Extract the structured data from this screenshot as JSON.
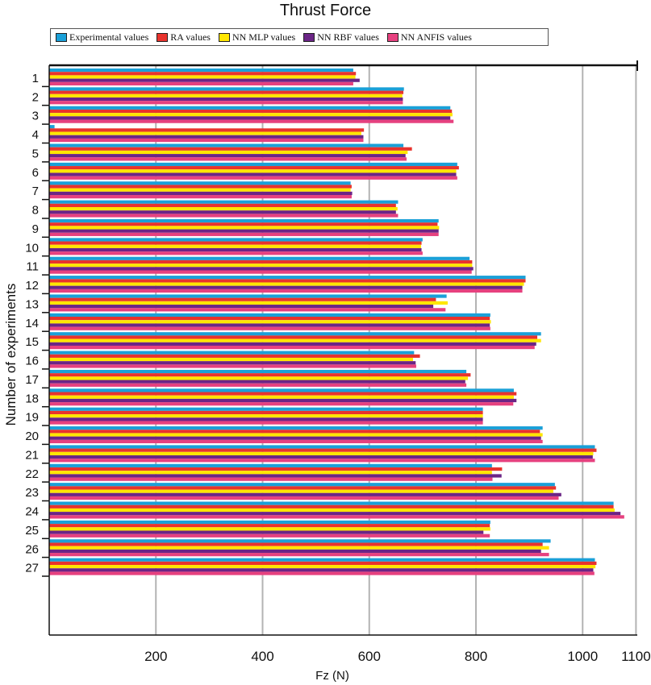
{
  "chart_data": {
    "type": "bar",
    "orientation": "horizontal",
    "title": "Thrust Force",
    "xlabel": "Fz (N)",
    "ylabel": "Number of experiments",
    "xlim": [
      0,
      1100
    ],
    "xticks": [
      200,
      400,
      600,
      800,
      1000,
      1100
    ],
    "xtick_labels": [
      "200",
      "400",
      "600",
      "800",
      "1000",
      "1100"
    ],
    "grid": "vertical",
    "legend_position": "top",
    "categories": [
      "1",
      "2",
      "3",
      "4",
      "5",
      "6",
      "7",
      "8",
      "9",
      "10",
      "11",
      "12",
      "13",
      "14",
      "15",
      "16",
      "17",
      "18",
      "19",
      "20",
      "21",
      "22",
      "23",
      "24",
      "25",
      "26",
      "27"
    ],
    "series": [
      {
        "name": "Experimental values",
        "color": "#1aa0d8",
        "values": [
          570,
          665,
          752,
          10,
          664,
          765,
          565,
          654,
          730,
          700,
          788,
          893,
          745,
          827,
          922,
          684,
          782,
          871,
          813,
          925,
          1023,
          830,
          948,
          1058,
          827,
          940,
          1023
        ]
      },
      {
        "name": "RA values",
        "color": "#e8332d",
        "values": [
          575,
          664,
          755,
          590,
          680,
          768,
          567,
          650,
          728,
          698,
          793,
          893,
          725,
          826,
          915,
          695,
          790,
          876,
          813,
          920,
          1026,
          849,
          950,
          1058,
          826,
          925,
          1026
        ]
      },
      {
        "name": "NN MLP values",
        "color": "#ffe600",
        "values": [
          574,
          662,
          756,
          585,
          672,
          763,
          565,
          653,
          731,
          697,
          793,
          890,
          747,
          828,
          922,
          682,
          785,
          871,
          813,
          925,
          1020,
          830,
          945,
          1060,
          827,
          937,
          1024
        ]
      },
      {
        "name": "NN RBF values",
        "color": "#6b2586",
        "values": [
          582,
          663,
          752,
          589,
          668,
          763,
          568,
          650,
          730,
          698,
          795,
          887,
          720,
          826,
          913,
          687,
          780,
          876,
          813,
          922,
          1019,
          848,
          960,
          1071,
          814,
          922,
          1020
        ]
      },
      {
        "name": "NN ANFIS values",
        "color": "#e6417f",
        "values": [
          570,
          663,
          758,
          589,
          670,
          765,
          567,
          654,
          730,
          700,
          792,
          887,
          743,
          827,
          910,
          688,
          782,
          870,
          813,
          925,
          1023,
          831,
          955,
          1078,
          826,
          937,
          1022
        ]
      }
    ]
  }
}
